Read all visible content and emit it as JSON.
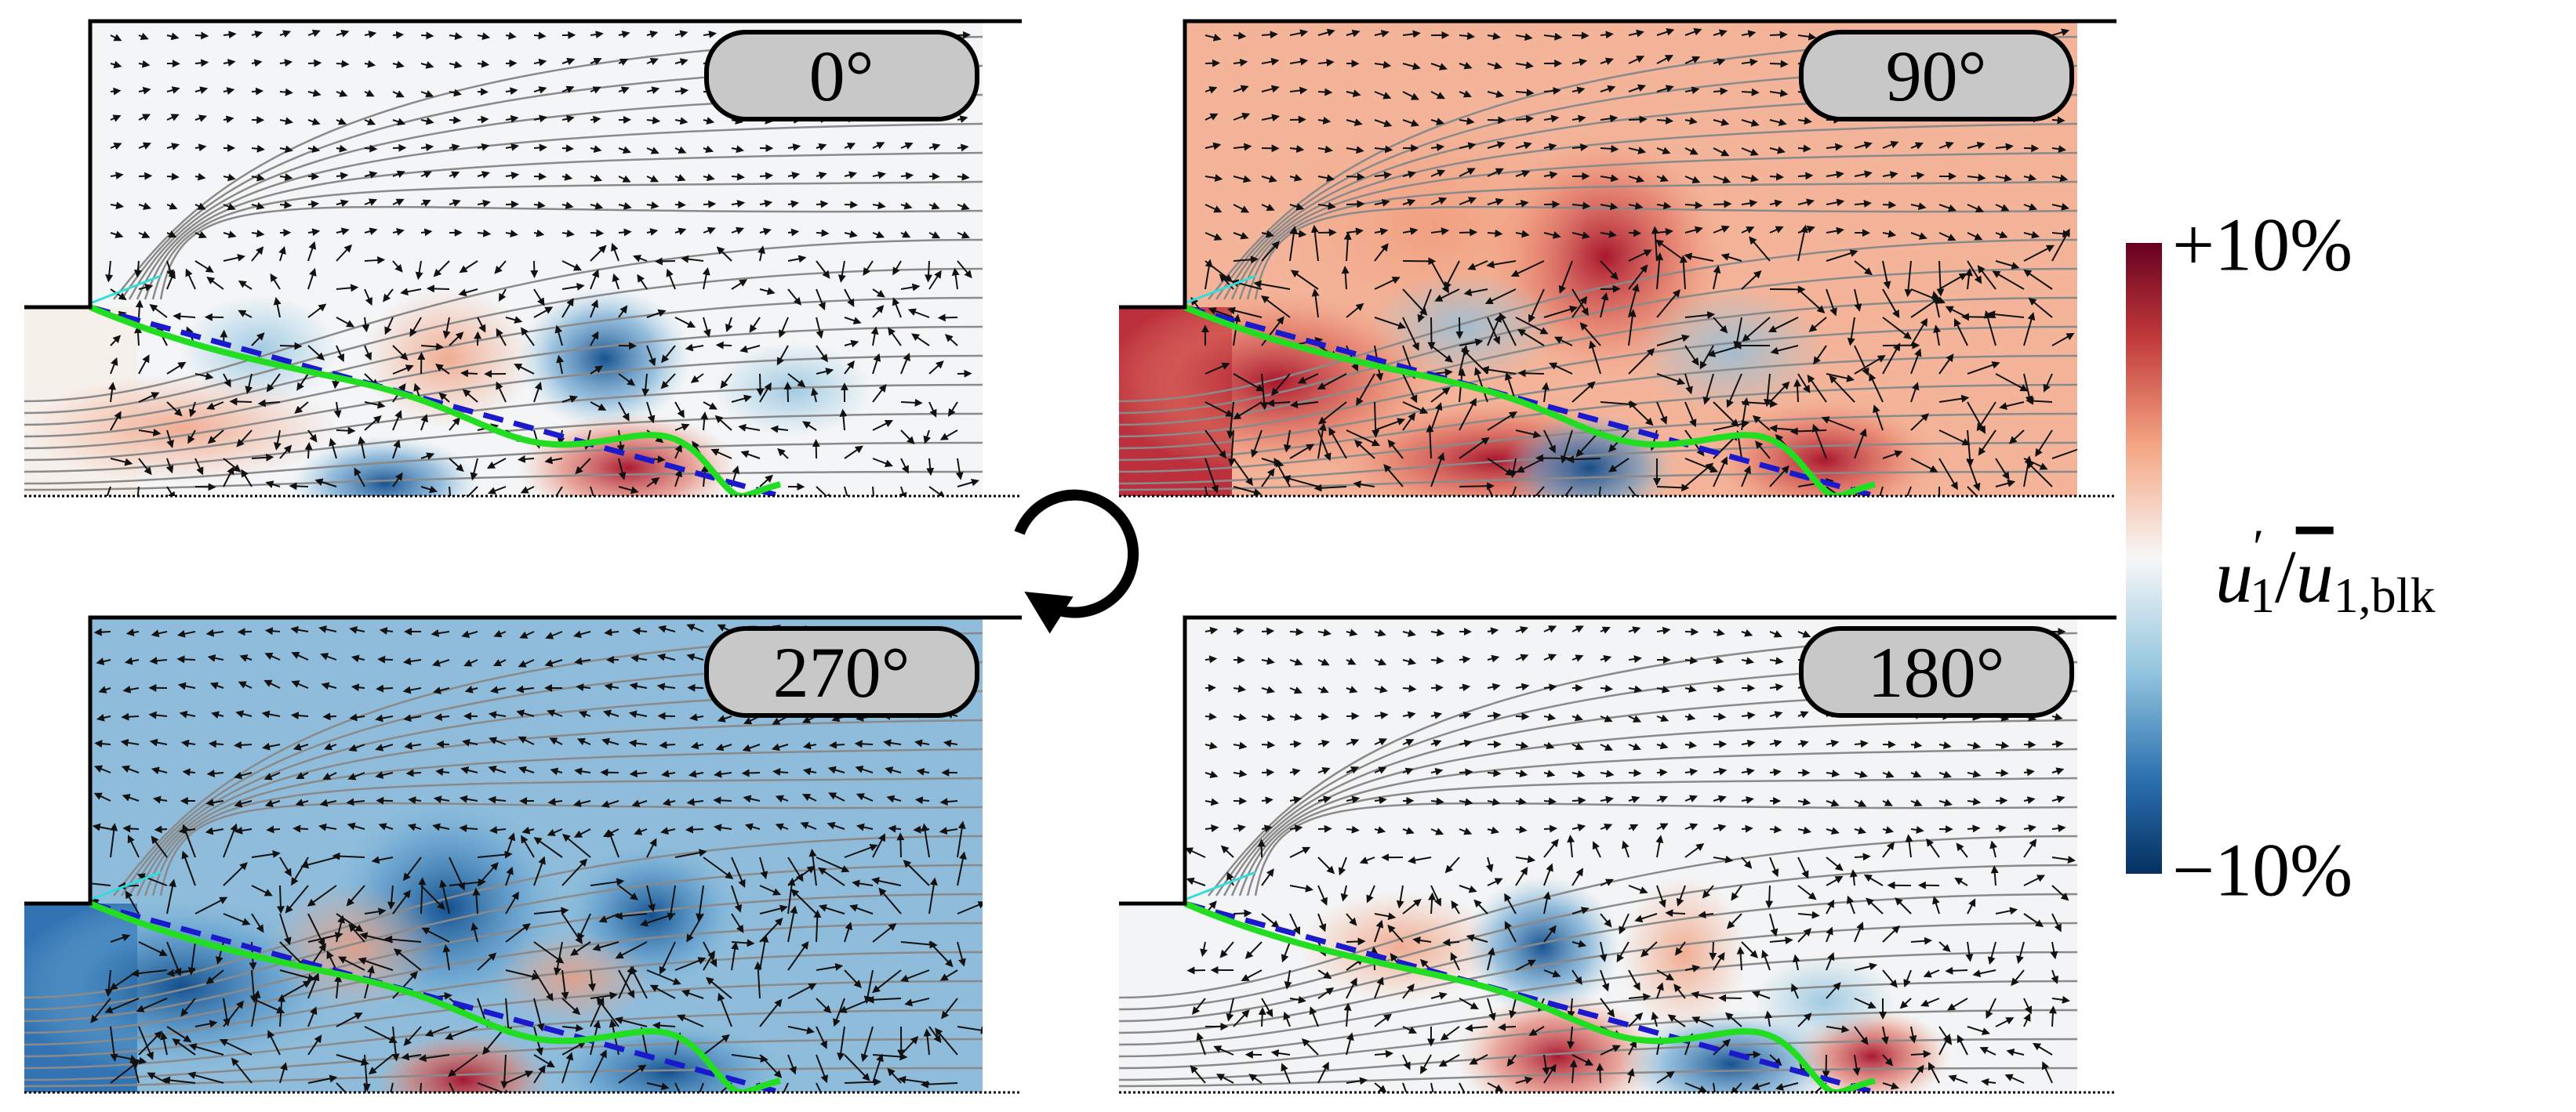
{
  "panels": [
    {
      "label": "0°"
    },
    {
      "label": "90°"
    },
    {
      "label": "270°"
    },
    {
      "label": "180°"
    }
  ],
  "colorbar": {
    "max_label": "+10%",
    "min_label": "−10%",
    "label": {
      "numerator": "u",
      "prime": "′",
      "numerator_sub": "1",
      "slash": "/",
      "denominator": "u",
      "denominator_sub": "1,blk"
    }
  }
}
